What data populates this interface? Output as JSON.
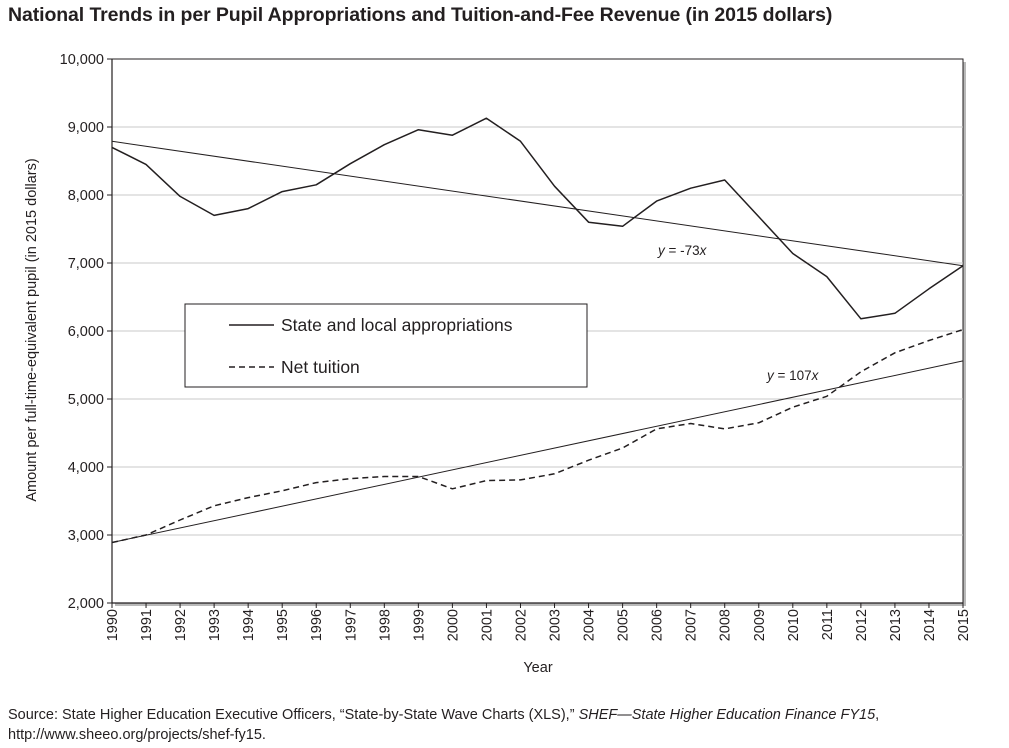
{
  "title": "National Trends in per Pupil Appropriations and Tuition-and-Fee Revenue (in 2015 dollars)",
  "source": {
    "prefix": "Source: State Higher Education Executive Officers, “State-by-State Wave Charts (XLS),”",
    "italic": "SHEF—State Higher Education Finance FY15",
    "suffix": ", http://www.sheeo.org/projects/shef-fy15."
  },
  "chart_data": {
    "type": "line",
    "title": "National Trends in per Pupil Appropriations and Tuition-and-Fee Revenue (in 2015 dollars)",
    "xlabel": "Year",
    "ylabel": "Amount per full-time-equivalent pupil (in 2015 dollars)",
    "ylim": [
      2000,
      10000
    ],
    "y_ticks": [
      2000,
      3000,
      4000,
      5000,
      6000,
      7000,
      8000,
      9000,
      10000
    ],
    "y_tick_labels": [
      "2,000",
      "3,000",
      "4,000",
      "5,000",
      "6,000",
      "7,000",
      "8,000",
      "9,000",
      "10,000"
    ],
    "grid": "horizontal",
    "legend_position": "center-left",
    "categories": [
      "1990",
      "1991",
      "1992",
      "1993",
      "1994",
      "1995",
      "1996",
      "1997",
      "1998",
      "1999",
      "2000",
      "2001",
      "2002",
      "2003",
      "2004",
      "2005",
      "2006",
      "2007",
      "2008",
      "2009",
      "2010",
      "2011",
      "2012",
      "2013",
      "2014",
      "2015"
    ],
    "series": [
      {
        "name": "State and local appropriations",
        "style": "solid",
        "values": [
          8700,
          8450,
          7980,
          7700,
          7800,
          8050,
          8150,
          8460,
          8740,
          8960,
          8880,
          9130,
          8790,
          8130,
          7600,
          7540,
          7910,
          8100,
          8220,
          7680,
          7140,
          6800,
          6180,
          6260,
          6620,
          6960
        ]
      },
      {
        "name": "Net tuition",
        "style": "dashed",
        "values": [
          2890,
          3000,
          3220,
          3430,
          3550,
          3650,
          3770,
          3830,
          3860,
          3860,
          3680,
          3800,
          3810,
          3900,
          4100,
          4280,
          4560,
          4640,
          4560,
          4650,
          4880,
          5040,
          5400,
          5680,
          5860,
          6020
        ]
      }
    ],
    "trendlines": [
      {
        "series": "State and local appropriations",
        "label": "y = -73x",
        "start": 8790,
        "end": 6960
      },
      {
        "series": "Net tuition",
        "label": "y = 107x",
        "start": 2890,
        "end": 5560
      }
    ]
  }
}
